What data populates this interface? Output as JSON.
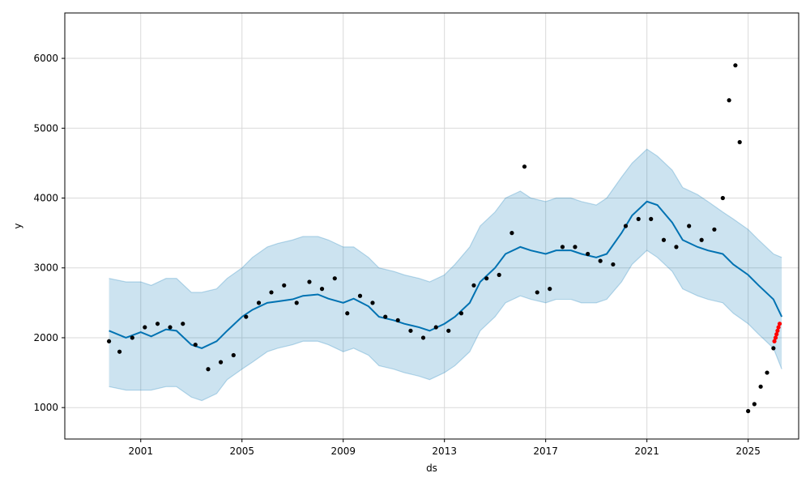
{
  "chart_data": {
    "type": "scatter",
    "title": "",
    "xlabel": "ds",
    "ylabel": "y",
    "xlim": [
      "1998-01-01",
      "2026-12-31"
    ],
    "ylim": [
      550,
      6650
    ],
    "x_ticks": [
      {
        "date": "2001-01-01",
        "label": "2001"
      },
      {
        "date": "2005-01-01",
        "label": "2005"
      },
      {
        "date": "2009-01-01",
        "label": "2009"
      },
      {
        "date": "2013-01-01",
        "label": "2013"
      },
      {
        "date": "2017-01-01",
        "label": "2017"
      },
      {
        "date": "2021-01-01",
        "label": "2021"
      },
      {
        "date": "2025-01-01",
        "label": "2025"
      }
    ],
    "y_ticks": [
      {
        "value": 1000,
        "label": "1000"
      },
      {
        "value": 2000,
        "label": "2000"
      },
      {
        "value": 3000,
        "label": "3000"
      },
      {
        "value": 4000,
        "label": "4000"
      },
      {
        "value": 5000,
        "label": "5000"
      },
      {
        "value": 6000,
        "label": "6000"
      }
    ],
    "grid": true,
    "colors": {
      "observed": "#000000",
      "forecast": "#0072b2",
      "interval_fill": "#0072b2",
      "interval_edge": "#0072b2",
      "highlight": "#ff0000",
      "grid": "#d9d9d9"
    },
    "forecast": {
      "x": [
        "1999-10-01",
        "2000-06-01",
        "2001-01-01",
        "2001-06-01",
        "2002-01-01",
        "2002-06-01",
        "2003-01-01",
        "2003-06-01",
        "2004-01-01",
        "2004-06-01",
        "2005-01-01",
        "2005-06-01",
        "2006-01-01",
        "2006-06-01",
        "2007-01-01",
        "2007-06-01",
        "2008-01-01",
        "2008-06-01",
        "2009-01-01",
        "2009-06-01",
        "2010-01-01",
        "2010-06-01",
        "2011-01-01",
        "2011-06-01",
        "2012-01-01",
        "2012-06-01",
        "2013-01-01",
        "2013-06-01",
        "2014-01-01",
        "2014-06-01",
        "2015-01-01",
        "2015-06-01",
        "2016-01-01",
        "2016-06-01",
        "2017-01-01",
        "2017-06-01",
        "2018-01-01",
        "2018-06-01",
        "2019-01-01",
        "2019-06-01",
        "2020-01-01",
        "2020-06-01",
        "2021-01-01",
        "2021-06-01",
        "2022-01-01",
        "2022-06-01",
        "2023-01-01",
        "2023-06-01",
        "2024-01-01",
        "2024-06-01",
        "2025-01-01",
        "2025-06-01",
        "2026-01-01",
        "2026-05-01"
      ],
      "yhat": [
        2100,
        2000,
        2080,
        2020,
        2120,
        2100,
        1900,
        1850,
        1950,
        2100,
        2300,
        2400,
        2500,
        2520,
        2550,
        2600,
        2620,
        2560,
        2500,
        2560,
        2450,
        2300,
        2250,
        2200,
        2150,
        2100,
        2200,
        2300,
        2500,
        2800,
        3000,
        3200,
        3300,
        3250,
        3200,
        3250,
        3250,
        3200,
        3150,
        3200,
        3500,
        3750,
        3950,
        3900,
        3650,
        3400,
        3300,
        3250,
        3200,
        3050,
        2900,
        2750,
        2550,
        2300
      ],
      "lower": [
        1300,
        1250,
        1250,
        1250,
        1300,
        1300,
        1150,
        1100,
        1200,
        1400,
        1550,
        1650,
        1800,
        1850,
        1900,
        1950,
        1950,
        1900,
        1800,
        1850,
        1750,
        1600,
        1550,
        1500,
        1450,
        1400,
        1500,
        1600,
        1800,
        2100,
        2300,
        2500,
        2600,
        2550,
        2500,
        2550,
        2550,
        2500,
        2500,
        2550,
        2800,
        3050,
        3250,
        3150,
        2950,
        2700,
        2600,
        2550,
        2500,
        2350,
        2200,
        2050,
        1850,
        1550
      ],
      "upper": [
        2850,
        2800,
        2800,
        2750,
        2850,
        2850,
        2650,
        2650,
        2700,
        2850,
        3000,
        3150,
        3300,
        3350,
        3400,
        3450,
        3450,
        3400,
        3300,
        3300,
        3150,
        3000,
        2950,
        2900,
        2850,
        2800,
        2900,
        3050,
        3300,
        3600,
        3800,
        4000,
        4100,
        4000,
        3950,
        4000,
        4000,
        3950,
        3900,
        4000,
        4300,
        4500,
        4700,
        4600,
        4400,
        4150,
        4050,
        3950,
        3800,
        3700,
        3550,
        3400,
        3200,
        3150
      ]
    },
    "observed": {
      "x": [
        "1999-10-01",
        "2000-03-01",
        "2000-09-01",
        "2001-03-01",
        "2001-09-01",
        "2002-03-01",
        "2002-09-01",
        "2003-03-01",
        "2003-09-01",
        "2004-03-01",
        "2004-09-01",
        "2005-03-01",
        "2005-09-01",
        "2006-03-01",
        "2006-09-01",
        "2007-03-01",
        "2007-09-01",
        "2008-03-01",
        "2008-09-01",
        "2009-03-01",
        "2009-09-01",
        "2010-03-01",
        "2010-09-01",
        "2011-03-01",
        "2011-09-01",
        "2012-03-01",
        "2012-09-01",
        "2013-03-01",
        "2013-09-01",
        "2014-03-01",
        "2014-09-01",
        "2015-03-01",
        "2015-09-01",
        "2016-03-01",
        "2016-09-01",
        "2017-03-01",
        "2017-09-01",
        "2018-03-01",
        "2018-09-01",
        "2019-03-01",
        "2019-09-01",
        "2020-03-01",
        "2020-09-01",
        "2021-03-01",
        "2021-09-01",
        "2022-03-01",
        "2022-09-01",
        "2023-03-01",
        "2023-09-01",
        "2024-01-01",
        "2024-04-01",
        "2024-07-01",
        "2024-09-01",
        "2025-01-01",
        "2025-04-01",
        "2025-07-01",
        "2025-10-01",
        "2026-01-01"
      ],
      "y": [
        1950,
        1800,
        2000,
        2150,
        2200,
        2150,
        2200,
        1900,
        1550,
        1650,
        1750,
        2300,
        2500,
        2650,
        2750,
        2500,
        2800,
        2700,
        2850,
        2350,
        2600,
        2500,
        2300,
        2250,
        2100,
        2000,
        2150,
        2100,
        2350,
        2750,
        2850,
        2900,
        3500,
        4450,
        2650,
        2700,
        3300,
        3300,
        3200,
        3100,
        3050,
        3600,
        3700,
        3700,
        3400,
        3300,
        3600,
        3400,
        3550,
        4000,
        5400,
        5900,
        4800,
        950,
        1050,
        1300,
        1500,
        1850
      ],
      "highlight_x": [
        "2026-01-15",
        "2026-02-01",
        "2026-02-15",
        "2026-03-01",
        "2026-03-15",
        "2026-04-01"
      ],
      "highlight_y": [
        1950,
        2000,
        2050,
        2100,
        2150,
        2200
      ]
    }
  }
}
